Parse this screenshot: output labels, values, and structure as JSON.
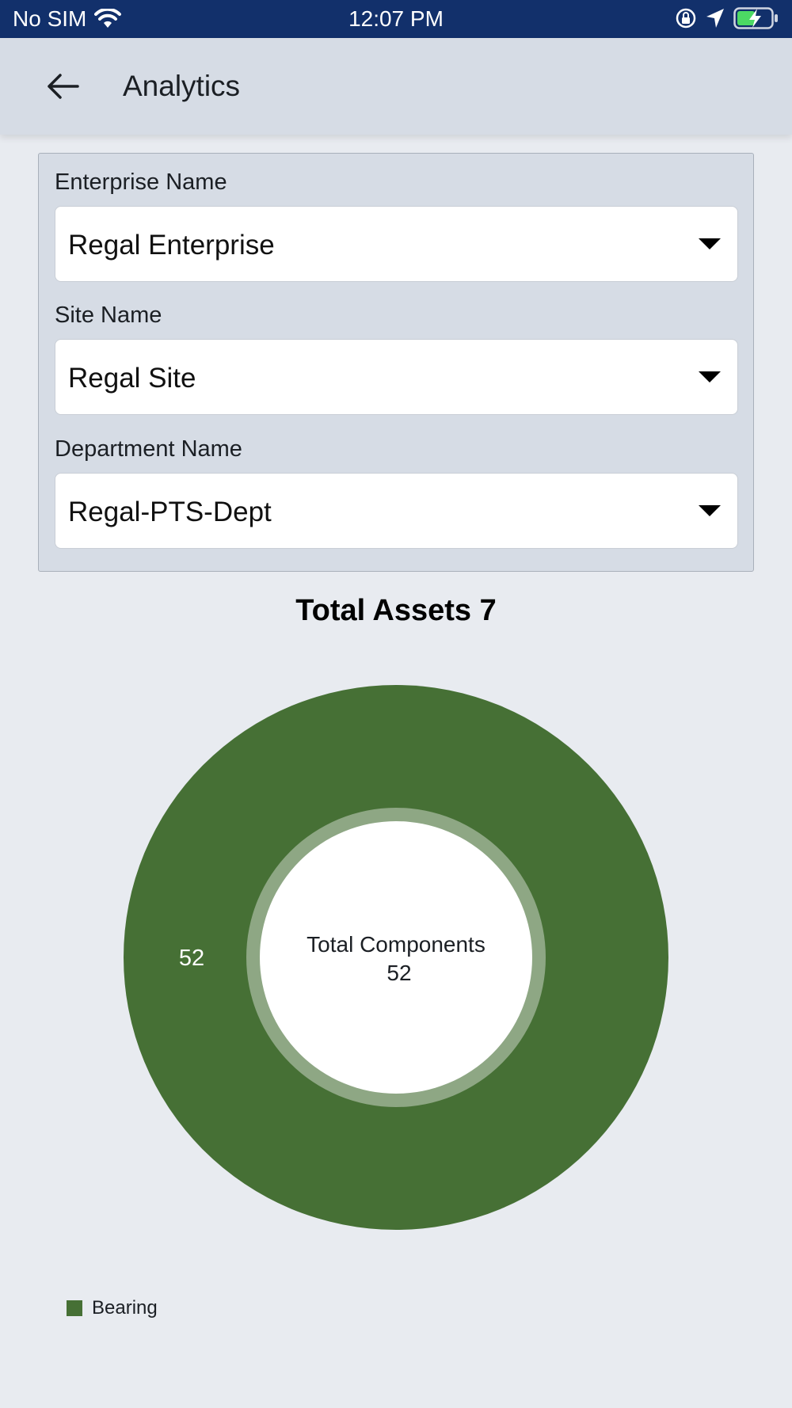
{
  "status_bar": {
    "carrier": "No SIM",
    "time": "12:07 PM"
  },
  "app_bar": {
    "title": "Analytics"
  },
  "filters": {
    "enterprise": {
      "label": "Enterprise Name",
      "value": "Regal Enterprise"
    },
    "site": {
      "label": "Site Name",
      "value": "Regal Site"
    },
    "department": {
      "label": "Department Name",
      "value": "Regal-PTS-Dept"
    }
  },
  "chart": {
    "title": "Total Assets 7",
    "center_label": "Total Components",
    "center_value": "52"
  },
  "colors": {
    "status_bar": "#12306b",
    "slice": "#467035",
    "inner_ring": "#8ea784"
  },
  "chart_data": {
    "type": "pie",
    "title": "Total Assets 7",
    "categories": [
      "Bearing"
    ],
    "values": [
      52
    ],
    "data_labels": [
      "52"
    ],
    "legend": [
      "Bearing"
    ],
    "legend_position": "bottom-left"
  }
}
